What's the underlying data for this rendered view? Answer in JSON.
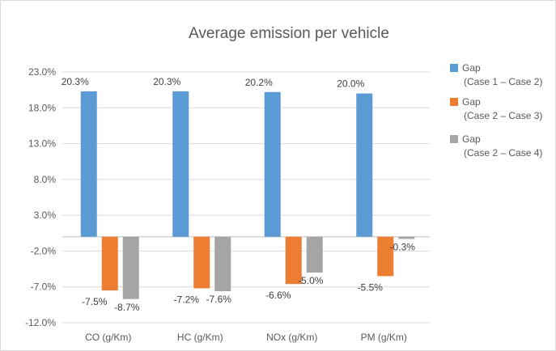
{
  "chart_data": {
    "type": "bar",
    "title": "Average emission per vehicle",
    "categories": [
      "CO (g/Km)",
      "HC (g/Km)",
      "NOx (g/Km)",
      "PM (g/Km)"
    ],
    "series": [
      {
        "name": [
          "Gap",
          "(Case 1 – Case 2)"
        ],
        "color": "#5b9bd5",
        "values": [
          20.3,
          20.3,
          20.2,
          20.0
        ]
      },
      {
        "name": [
          "Gap",
          "(Case 2 – Case 3)"
        ],
        "color": "#ed7d31",
        "values": [
          -7.5,
          -7.2,
          -6.6,
          -5.5
        ]
      },
      {
        "name": [
          "Gap",
          "(Case 2 – Case 4)"
        ],
        "color": "#a5a5a5",
        "values": [
          -8.7,
          -7.6,
          -5.0,
          -0.3
        ]
      }
    ],
    "yticks": [
      23.0,
      18.0,
      13.0,
      8.0,
      3.0,
      -2.0,
      -7.0,
      -12.0
    ],
    "ytick_labels": [
      "23.0%",
      "18.0%",
      "13.0%",
      "8.0%",
      "3.0%",
      "-2.0%",
      "-7.0%",
      "-12.0%"
    ],
    "data_labels": [
      [
        "20.3%",
        "20.3%",
        "20.2%",
        "20.0%"
      ],
      [
        "-7.5%",
        "-7.2%",
        "-6.6%",
        "-5.5%"
      ],
      [
        "-8.7%",
        "-7.6%",
        "-5.0%",
        "-0.3%"
      ]
    ],
    "ylim": [
      -12.0,
      23.0
    ],
    "grid": true,
    "legend_position": "right",
    "xlabel": "",
    "ylabel": ""
  }
}
